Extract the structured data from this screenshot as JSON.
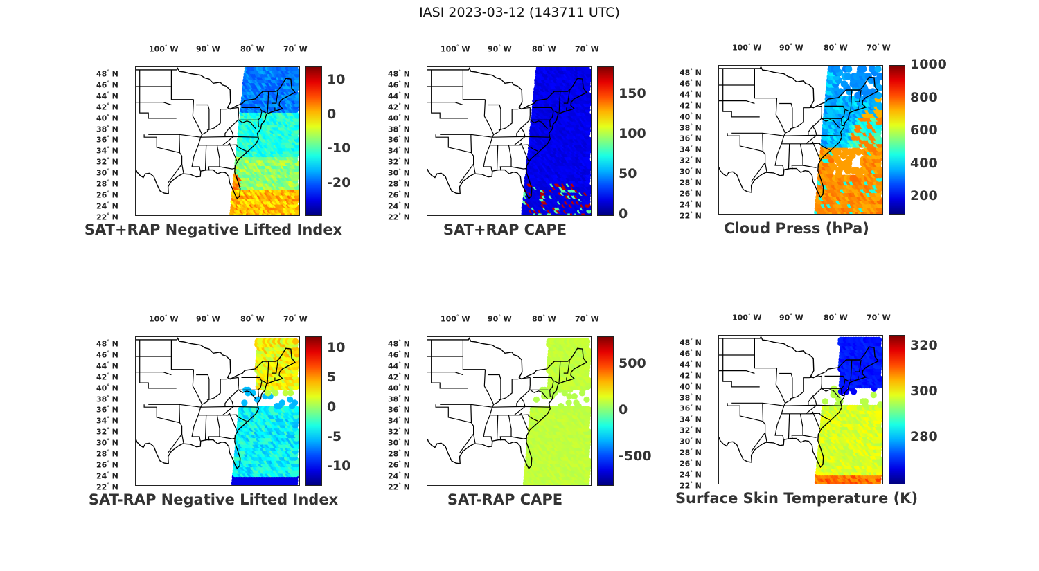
{
  "title": "IASI 2023-03-12 (143711 UTC)",
  "lon_labels": [
    {
      "deg": "100",
      "dir": "W"
    },
    {
      "deg": "90",
      "dir": "W"
    },
    {
      "deg": "80",
      "dir": "W"
    },
    {
      "deg": "70",
      "dir": "W"
    }
  ],
  "lat_labels": [
    "48",
    "46",
    "44",
    "42",
    "40",
    "38",
    "36",
    "34",
    "32",
    "30",
    "28",
    "26",
    "24",
    "22"
  ],
  "lat_dir": "N",
  "panels": [
    {
      "title": "SAT+RAP Negative Lifted Index",
      "colorbar_ticks": [
        "10",
        "0",
        "-10",
        "-20"
      ],
      "colorbar_range": [
        -29,
        14
      ],
      "colormap": "jet",
      "swath": "full-east",
      "dominant": "cyan"
    },
    {
      "title": "SAT+RAP CAPE",
      "colorbar_ticks": [
        "150",
        "100",
        "50",
        "0"
      ],
      "colorbar_range": [
        0,
        185
      ],
      "colormap": "jet",
      "swath": "full-east",
      "dominant": "darkblue"
    },
    {
      "title": "Cloud Press (hPa)",
      "colorbar_ticks": [
        "1000",
        "800",
        "600",
        "400",
        "200"
      ],
      "colorbar_range": [
        100,
        1000
      ],
      "colormap": "jet",
      "swath": "cloudy",
      "dominant": "blue-orange"
    },
    {
      "title": "SAT-RAP Negative Lifted Index",
      "colorbar_ticks": [
        "10",
        "5",
        "0",
        "-5",
        "-10"
      ],
      "colorbar_range": [
        -13,
        12
      ],
      "colormap": "jet",
      "swath": "clear",
      "dominant": "cyan-blue"
    },
    {
      "title": "SAT-RAP CAPE",
      "colorbar_ticks": [
        "500",
        "0",
        "-500"
      ],
      "colorbar_range": [
        -800,
        800
      ],
      "colormap": "jet",
      "swath": "clear",
      "dominant": "lightgreen"
    },
    {
      "title": "Surface Skin Temperature (K)",
      "colorbar_ticks": [
        "320",
        "300",
        "280"
      ],
      "colorbar_range": [
        260,
        325
      ],
      "colormap": "jet",
      "swath": "clear",
      "dominant": "yellow-green"
    }
  ]
}
